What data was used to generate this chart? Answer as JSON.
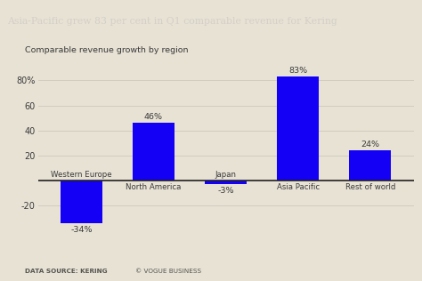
{
  "title": "Asia-Pacific grew 83 per cent in Q1 comparable revenue for Kering",
  "subtitle": "Comparable revenue growth by region",
  "categories": [
    "Western Europe",
    "North America",
    "Japan",
    "Asia Pacific",
    "Rest of world"
  ],
  "values": [
    -34,
    46,
    -3,
    83,
    24
  ],
  "bar_labels": [
    "-34%",
    "46%",
    "-3%",
    "83%",
    "24%"
  ],
  "bar_color": "#1400f5",
  "background_color": "#e8e2d5",
  "title_bg_color": "#111111",
  "title_text_color": "#d4cfc7",
  "axis_label_color": "#3a3a3a",
  "footer_left": "DATA SOURCE: KERING",
  "footer_right": "© VOGUE BUSINESS",
  "ylim": [
    -42,
    96
  ],
  "yticks": [
    -20,
    0,
    20,
    40,
    60,
    80
  ],
  "grid_color": "#cdc8bb"
}
